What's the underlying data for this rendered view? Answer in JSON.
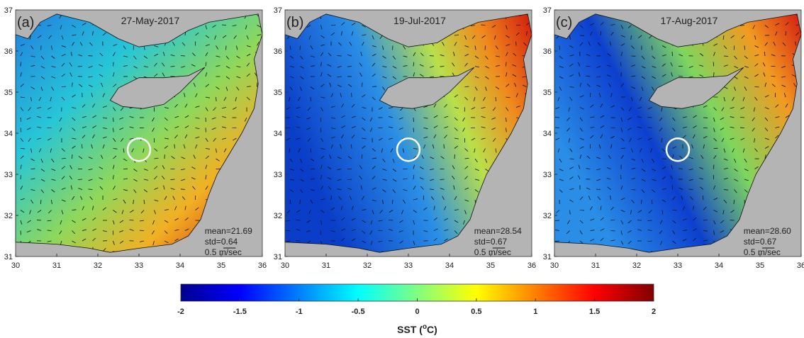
{
  "panels": [
    {
      "label": "(a)",
      "date": "27-May-2017",
      "mean": "mean=21.69",
      "std": "std=0.64",
      "scale": "0.5  m/sec"
    },
    {
      "label": "(b)",
      "date": "19-Jul-2017",
      "mean": "mean=28.54",
      "std": "std=0.67",
      "scale": "0.5  m/sec"
    },
    {
      "label": "(c)",
      "date": "17-Aug-2017",
      "mean": "mean=28.60",
      "std": "std=0.67",
      "scale": "0.5  m/sec"
    }
  ],
  "map_axes": {
    "xlim": [
      30,
      36
    ],
    "ylim": [
      31,
      37
    ],
    "xticks": [
      30,
      31,
      32,
      33,
      34,
      35,
      36
    ],
    "yticks": [
      31,
      32,
      33,
      34,
      35,
      36,
      37
    ]
  },
  "colorbar": {
    "lim": [
      -2,
      2
    ],
    "ticks": [
      -2,
      -1.5,
      -1,
      -0.5,
      0,
      0.5,
      1,
      1.5,
      2
    ],
    "label_prefix": "SST (",
    "label_sup": "o",
    "label_suffix": "C)"
  }
}
